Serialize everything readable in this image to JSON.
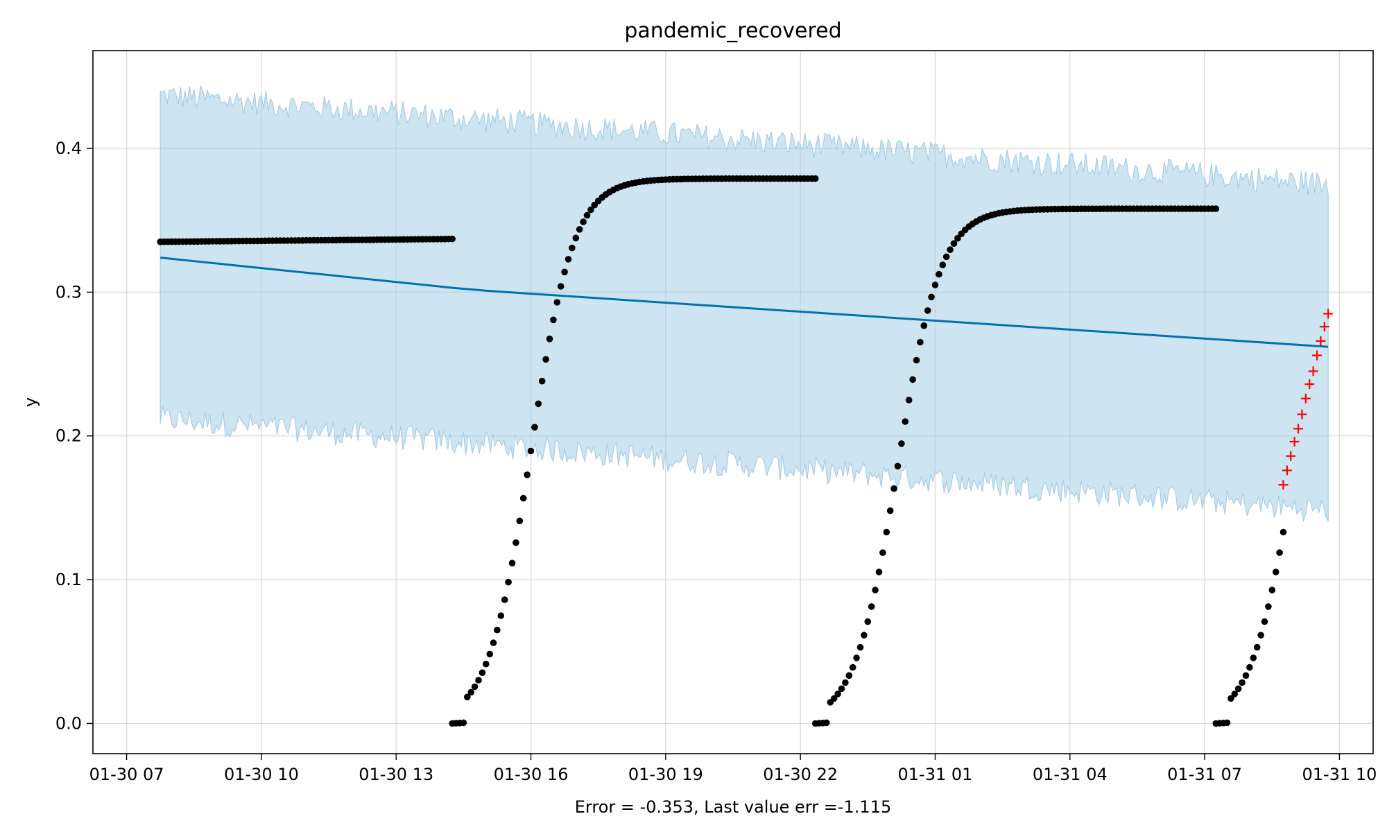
{
  "chart_data": {
    "type": "line",
    "title": "pandemic_recovered",
    "xlabel": "Error = -0.353, Last value err =-1.115",
    "ylabel": "y",
    "x_axis": {
      "kind": "datetime",
      "range": [
        "2020-01-30T06:15:00",
        "2020-01-31T10:45:00"
      ],
      "ticks": [
        "2020-01-30T07:00:00",
        "2020-01-30T10:00:00",
        "2020-01-30T13:00:00",
        "2020-01-30T16:00:00",
        "2020-01-30T19:00:00",
        "2020-01-30T22:00:00",
        "2020-01-31T01:00:00",
        "2020-01-31T04:00:00",
        "2020-01-31T07:00:00",
        "2020-01-31T10:00:00"
      ],
      "tick_labels": [
        "01-30 07",
        "01-30 10",
        "01-30 13",
        "01-30 16",
        "01-30 19",
        "01-30 22",
        "01-31 01",
        "01-31 04",
        "01-31 07",
        "01-31 10"
      ]
    },
    "y_axis": {
      "range": [
        -0.021,
        0.468
      ],
      "ticks": [
        0.0,
        0.1,
        0.2,
        0.3,
        0.4
      ],
      "tick_labels": [
        "0.0",
        "0.1",
        "0.2",
        "0.3",
        "0.4"
      ]
    },
    "grid": true,
    "series": [
      {
        "role": "forecast",
        "kind": "line",
        "color": "#0072b2",
        "x": [
          "2020-01-30T07:45:00",
          "2020-01-30T14:15:00",
          "2020-01-30T15:00:00",
          "2020-01-31T09:45:00"
        ],
        "y": [
          0.324,
          0.303,
          0.301,
          0.262
        ]
      },
      {
        "role": "uncertainty-band",
        "kind": "band",
        "color": "#a6cde6",
        "x_start": "2020-01-30T07:45:00",
        "x_end": "2020-01-31T09:45:00",
        "upper_start": 0.437,
        "upper_end": 0.375,
        "lower_start": 0.212,
        "lower_end": 0.148,
        "noise": 0.009
      },
      {
        "role": "history",
        "kind": "scatter",
        "color": "#000000",
        "segments": [
          {
            "kind": "flat",
            "x_start": "2020-01-30T07:45:00",
            "x_end": "2020-01-30T14:15:00",
            "y_start": 0.335,
            "y_end": 0.337
          },
          {
            "kind": "logistic",
            "x_start": "2020-01-30T14:15:00",
            "x_end": "2020-01-30T22:20:00",
            "plateau": 0.379,
            "midpoint": "2020-01-30T16:00:00",
            "steepness_per_hour": 2.1
          },
          {
            "kind": "logistic",
            "x_start": "2020-01-30T22:20:00",
            "x_end": "2020-01-31T07:15:00",
            "plateau": 0.358,
            "midpoint": "2020-01-31T00:10:00",
            "steepness_per_hour": 2.1
          },
          {
            "kind": "logistic",
            "x_start": "2020-01-31T07:15:00",
            "x_end": "2020-01-31T08:45:00",
            "plateau": 0.358,
            "midpoint": "2020-01-31T09:00:00",
            "steepness_per_hour": 2.1
          }
        ]
      },
      {
        "role": "actual-test",
        "kind": "scatter",
        "marker": "plus",
        "color": "#ff0000",
        "x": [
          "2020-01-31T08:45:00",
          "2020-01-31T08:50:00",
          "2020-01-31T08:55:00",
          "2020-01-31T09:00:00",
          "2020-01-31T09:05:00",
          "2020-01-31T09:10:00",
          "2020-01-31T09:15:00",
          "2020-01-31T09:20:00",
          "2020-01-31T09:25:00",
          "2020-01-31T09:30:00",
          "2020-01-31T09:35:00",
          "2020-01-31T09:40:00",
          "2020-01-31T09:45:00"
        ],
        "y": [
          0.166,
          0.176,
          0.186,
          0.196,
          0.205,
          0.215,
          0.226,
          0.236,
          0.245,
          0.256,
          0.266,
          0.276,
          0.285
        ]
      }
    ]
  }
}
